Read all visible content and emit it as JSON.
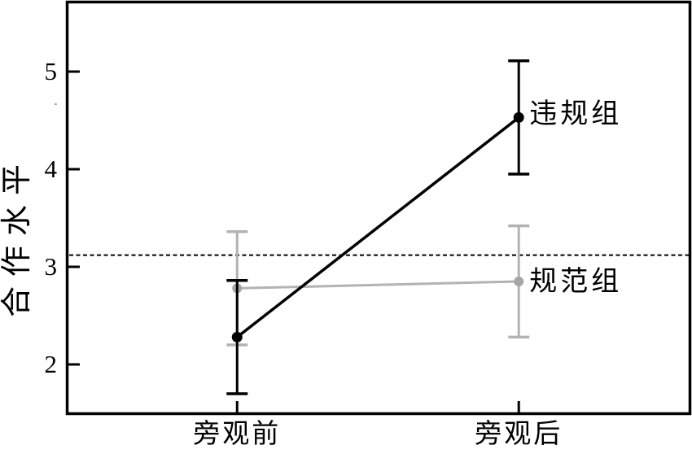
{
  "figure": {
    "background_color": "#ffffff",
    "frame_color": "#000000"
  },
  "chart_data": {
    "type": "line",
    "title": "",
    "xlabel": "",
    "ylabel": "合作水平",
    "categories": [
      "旁观前",
      "旁观后"
    ],
    "yticks": [
      2,
      3,
      4,
      5
    ],
    "ylim": [
      1.5,
      5.7
    ],
    "grid": false,
    "legend_position": "inline-labels-right-of-second-point",
    "reference_line": {
      "value": 3.12,
      "style": "dashed",
      "color": "#000000"
    },
    "series": [
      {
        "name": "违规组",
        "color": "#000000",
        "marker": "circle",
        "values": [
          2.28,
          4.53
        ],
        "errors": [
          0.58,
          0.58
        ]
      },
      {
        "name": "规范组",
        "color": "#b3b3b3",
        "marker_color": "#a6a6a6",
        "marker": "circle",
        "values": [
          2.78,
          2.85
        ],
        "errors": [
          0.58,
          0.57
        ]
      }
    ]
  }
}
